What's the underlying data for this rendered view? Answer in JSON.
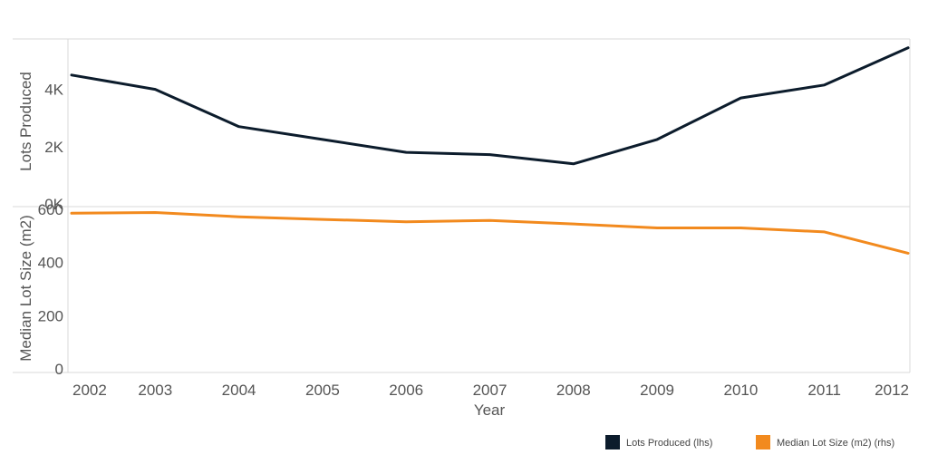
{
  "chart_data": {
    "type": "line",
    "xlabel": "Year",
    "x": [
      "2002",
      "2003",
      "2004",
      "2005",
      "2006",
      "2007",
      "2008",
      "2009",
      "2010",
      "2011",
      "2012"
    ],
    "panels": [
      {
        "ylabel": "Lots Produced",
        "yticks": [
          {
            "value": 0,
            "label": "0K"
          },
          {
            "value": 2000,
            "label": "2K"
          },
          {
            "value": 4000,
            "label": "4K"
          }
        ],
        "ylim": [
          0,
          5600
        ],
        "series": [
          {
            "name": "Lots Produced (lhs)",
            "color": "#0c1c2c",
            "values": [
              4500,
              4000,
              2700,
              2250,
              1800,
              1720,
              1400,
              2250,
              3700,
              4150,
              5450
            ]
          }
        ]
      },
      {
        "ylabel": "Median Lot Size (m2)",
        "yticks": [
          {
            "value": 0,
            "label": "0"
          },
          {
            "value": 200,
            "label": "200"
          },
          {
            "value": 400,
            "label": "400"
          },
          {
            "value": 600,
            "label": "600"
          }
        ],
        "ylim": [
          0,
          610
        ],
        "series": [
          {
            "name": "Median Lot Size (m2) (rhs)",
            "color": "#f28a1e",
            "values": [
              585,
              588,
              572,
              562,
              553,
              558,
              545,
              530,
              530,
              515,
              435
            ]
          }
        ]
      }
    ],
    "legend": [
      {
        "label": "Lots Produced (lhs)",
        "color": "#0c1c2c"
      },
      {
        "label": "Median Lot Size (m2) (rhs)",
        "color": "#f28a1e"
      }
    ],
    "grid": false,
    "legend_position": "bottom-right"
  }
}
